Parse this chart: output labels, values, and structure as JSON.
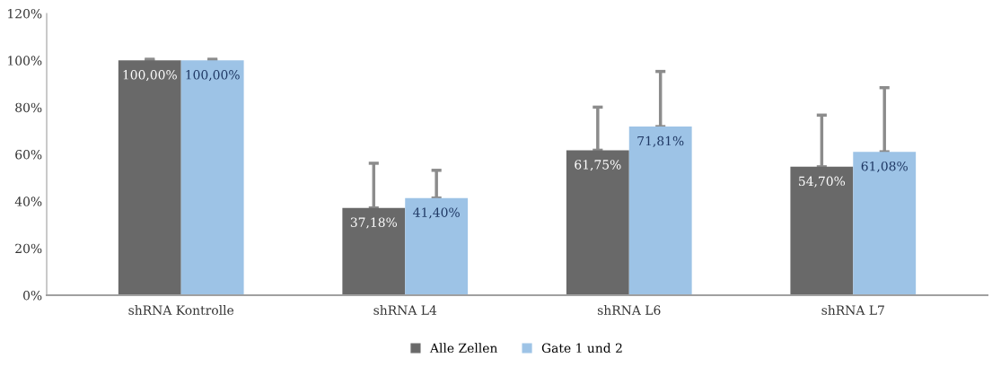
{
  "chart_data": {
    "type": "bar",
    "categories": [
      "shRNA Kontrolle",
      "shRNA L4",
      "shRNA L6",
      "shRNA L7"
    ],
    "series": [
      {
        "name": "Alle Zellen",
        "color": "#696969",
        "values": [
          100,
          37.18,
          61.75,
          54.7
        ],
        "errors": [
          [
            100,
            100.5
          ],
          [
            37.18,
            56.2
          ],
          [
            61.75,
            80.1
          ],
          [
            54.7,
            76.7
          ]
        ],
        "value_labels": [
          "100,00%",
          "37,18%",
          "61,75%",
          "54,70%"
        ]
      },
      {
        "name": "Gate 1 und 2",
        "color": "#9dc3e6",
        "values": [
          100,
          41.4,
          71.81,
          61.08
        ],
        "errors": [
          [
            100,
            100.5
          ],
          [
            41.4,
            53.2
          ],
          [
            71.81,
            95.3
          ],
          [
            61.08,
            88.4
          ]
        ],
        "value_labels": [
          "100,00%",
          "41,40%",
          "71,81%",
          "61,08%"
        ]
      }
    ],
    "ylim": [
      0,
      120
    ],
    "yticks": [
      {
        "value": 0,
        "label": "0%"
      },
      {
        "value": 20,
        "label": "20%"
      },
      {
        "value": 40,
        "label": "40%"
      },
      {
        "value": 60,
        "label": "60%"
      },
      {
        "value": 80,
        "label": "80%"
      },
      {
        "value": 100,
        "label": "100%"
      },
      {
        "value": 120,
        "label": "120%"
      }
    ],
    "grid": false,
    "legend": "bottom"
  }
}
